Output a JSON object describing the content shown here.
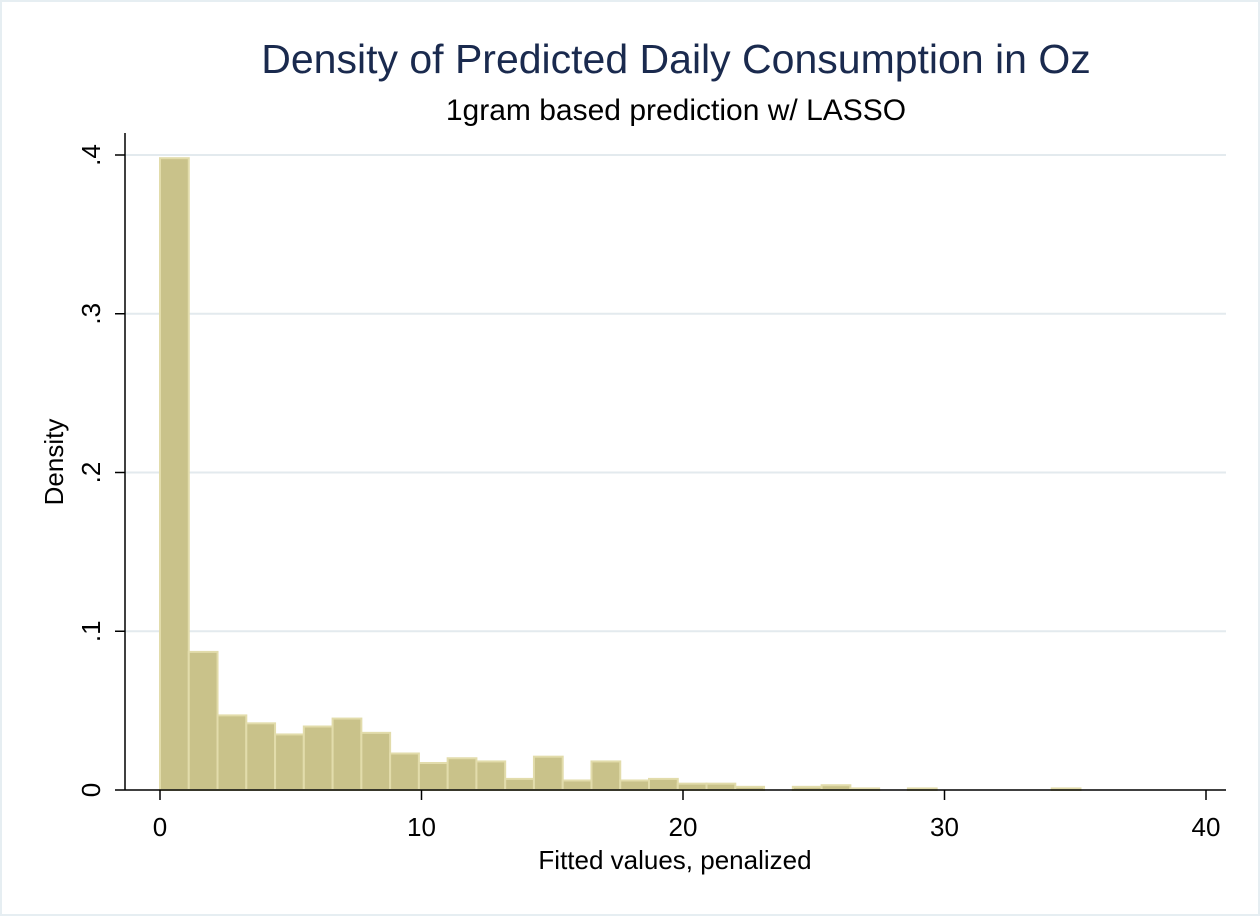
{
  "chart_data": {
    "type": "bar",
    "title": "Density of Predicted Daily Consumption in Oz",
    "subtitle": "1gram based prediction w/ LASSO",
    "xlabel": "Fitted values, penalized",
    "ylabel": "Density",
    "xlim": [
      0,
      40
    ],
    "ylim": [
      0,
      0.4
    ],
    "x_ticks": [
      0,
      10,
      20,
      30,
      40
    ],
    "x_tick_labels": [
      "0",
      "10",
      "20",
      "30",
      "40"
    ],
    "y_ticks": [
      0,
      0.1,
      0.2,
      0.3,
      0.4
    ],
    "y_tick_labels": [
      "0",
      ".1",
      ".2",
      ".3",
      ".4"
    ],
    "grid": true,
    "bin_width": 1.1,
    "bins": [
      {
        "x_start": 0.0,
        "x_end": 1.1,
        "density": 0.398
      },
      {
        "x_start": 1.1,
        "x_end": 2.2,
        "density": 0.087
      },
      {
        "x_start": 2.2,
        "x_end": 3.3,
        "density": 0.047
      },
      {
        "x_start": 3.3,
        "x_end": 4.4,
        "density": 0.042
      },
      {
        "x_start": 4.4,
        "x_end": 5.5,
        "density": 0.035
      },
      {
        "x_start": 5.5,
        "x_end": 6.6,
        "density": 0.04
      },
      {
        "x_start": 6.6,
        "x_end": 7.7,
        "density": 0.045
      },
      {
        "x_start": 7.7,
        "x_end": 8.8,
        "density": 0.036
      },
      {
        "x_start": 8.8,
        "x_end": 9.9,
        "density": 0.023
      },
      {
        "x_start": 9.9,
        "x_end": 11.0,
        "density": 0.017
      },
      {
        "x_start": 11.0,
        "x_end": 12.1,
        "density": 0.02
      },
      {
        "x_start": 12.1,
        "x_end": 13.2,
        "density": 0.018
      },
      {
        "x_start": 13.2,
        "x_end": 14.3,
        "density": 0.007
      },
      {
        "x_start": 14.3,
        "x_end": 15.4,
        "density": 0.021
      },
      {
        "x_start": 15.4,
        "x_end": 16.5,
        "density": 0.006
      },
      {
        "x_start": 16.5,
        "x_end": 17.6,
        "density": 0.018
      },
      {
        "x_start": 17.6,
        "x_end": 18.7,
        "density": 0.006
      },
      {
        "x_start": 18.7,
        "x_end": 19.8,
        "density": 0.007
      },
      {
        "x_start": 19.8,
        "x_end": 20.9,
        "density": 0.004
      },
      {
        "x_start": 20.9,
        "x_end": 22.0,
        "density": 0.004
      },
      {
        "x_start": 22.0,
        "x_end": 23.1,
        "density": 0.002
      },
      {
        "x_start": 23.1,
        "x_end": 24.2,
        "density": 0.0
      },
      {
        "x_start": 24.2,
        "x_end": 25.3,
        "density": 0.002
      },
      {
        "x_start": 25.3,
        "x_end": 26.4,
        "density": 0.003
      },
      {
        "x_start": 26.4,
        "x_end": 27.5,
        "density": 0.001
      },
      {
        "x_start": 27.5,
        "x_end": 28.6,
        "density": 0.0
      },
      {
        "x_start": 28.6,
        "x_end": 29.7,
        "density": 0.001
      },
      {
        "x_start": 29.7,
        "x_end": 30.8,
        "density": 0.0
      },
      {
        "x_start": 30.8,
        "x_end": 31.9,
        "density": 0.0
      },
      {
        "x_start": 31.9,
        "x_end": 33.0,
        "density": 0.0
      },
      {
        "x_start": 33.0,
        "x_end": 34.1,
        "density": 0.0
      },
      {
        "x_start": 34.1,
        "x_end": 35.2,
        "density": 0.001
      }
    ],
    "colors": {
      "bar_fill": "#c9c28a",
      "bar_stroke": "#e2dcab",
      "title": "#1a2a4e",
      "gridline": "#e3eaee"
    }
  }
}
